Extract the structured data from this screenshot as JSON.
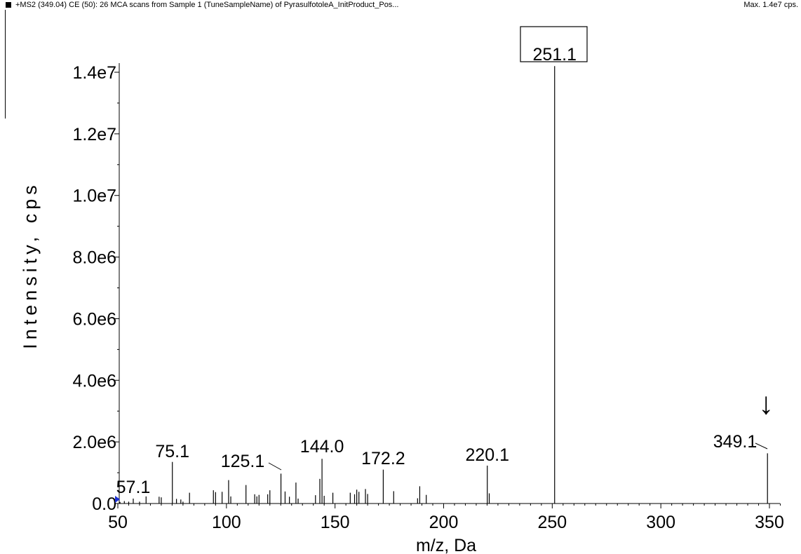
{
  "header": {
    "title": "+MS2 (349.04) CE (50): 26 MCA scans from Sample 1 (TuneSampleName) of PyrasulfotoleA_InitProduct_Pos...",
    "max": "Max. 1.4e7 cps."
  },
  "chart_data": {
    "type": "bar",
    "title": "",
    "xlabel": "m/z, Da",
    "ylabel": "Intensity, cps",
    "xlim": [
      50,
      355
    ],
    "ylim": [
      0,
      14300000.0
    ],
    "x_ticks": [
      50,
      100,
      150,
      200,
      250,
      300,
      350
    ],
    "x_tick_labels": [
      "50",
      "100",
      "150",
      "200",
      "250",
      "300",
      "350"
    ],
    "y_ticks": [
      0,
      2000000,
      4000000,
      6000000,
      8000000,
      10000000,
      12000000,
      14000000
    ],
    "y_tick_labels": [
      "0.0",
      "2.0e6",
      "4.0e6",
      "6.0e6",
      "8.0e6",
      "1.0e7",
      "1.2e7",
      "1.4e7"
    ],
    "grid": false,
    "legend": "none",
    "peaks": [
      {
        "x": 51,
        "y": 50000
      },
      {
        "x": 53,
        "y": 80000
      },
      {
        "x": 55,
        "y": 60000
      },
      {
        "x": 57.1,
        "y": 160000
      },
      {
        "x": 60,
        "y": 60000
      },
      {
        "x": 63,
        "y": 230000
      },
      {
        "x": 69,
        "y": 220000
      },
      {
        "x": 70,
        "y": 200000
      },
      {
        "x": 75.1,
        "y": 1350000
      },
      {
        "x": 77,
        "y": 150000
      },
      {
        "x": 79,
        "y": 130000
      },
      {
        "x": 80,
        "y": 60000
      },
      {
        "x": 83,
        "y": 350000
      },
      {
        "x": 94,
        "y": 430000
      },
      {
        "x": 95,
        "y": 370000
      },
      {
        "x": 98,
        "y": 380000
      },
      {
        "x": 101,
        "y": 760000
      },
      {
        "x": 102,
        "y": 230000
      },
      {
        "x": 109,
        "y": 600000
      },
      {
        "x": 113,
        "y": 300000
      },
      {
        "x": 114,
        "y": 230000
      },
      {
        "x": 115,
        "y": 280000
      },
      {
        "x": 119,
        "y": 300000
      },
      {
        "x": 120,
        "y": 430000
      },
      {
        "x": 125.1,
        "y": 970000
      },
      {
        "x": 127,
        "y": 390000
      },
      {
        "x": 129,
        "y": 220000
      },
      {
        "x": 132,
        "y": 680000
      },
      {
        "x": 133,
        "y": 160000
      },
      {
        "x": 141,
        "y": 270000
      },
      {
        "x": 143,
        "y": 800000
      },
      {
        "x": 144,
        "y": 1450000
      },
      {
        "x": 145,
        "y": 250000
      },
      {
        "x": 149,
        "y": 350000
      },
      {
        "x": 157,
        "y": 350000
      },
      {
        "x": 159,
        "y": 300000
      },
      {
        "x": 160,
        "y": 450000
      },
      {
        "x": 161,
        "y": 380000
      },
      {
        "x": 164,
        "y": 470000
      },
      {
        "x": 165,
        "y": 310000
      },
      {
        "x": 172.2,
        "y": 1100000
      },
      {
        "x": 177,
        "y": 400000
      },
      {
        "x": 188,
        "y": 170000
      },
      {
        "x": 189,
        "y": 560000
      },
      {
        "x": 192,
        "y": 280000
      },
      {
        "x": 220.1,
        "y": 1230000
      },
      {
        "x": 221,
        "y": 330000
      },
      {
        "x": 251.1,
        "y": 14200000
      },
      {
        "x": 349.1,
        "y": 1630000
      }
    ],
    "annotations": [
      {
        "label": "251.1",
        "x": 251.1,
        "boxed": true
      },
      {
        "label": "220.1",
        "x": 220.1
      },
      {
        "label": "172.2",
        "x": 172.2
      },
      {
        "label": "144.0",
        "x": 144
      },
      {
        "label": "125.1",
        "x": 125.1
      },
      {
        "label": "75.1",
        "x": 75.1
      },
      {
        "label": "57.1",
        "x": 57.1
      },
      {
        "label": "349.1",
        "x": 349.1
      },
      {
        "label": "↓",
        "x": 349.1,
        "kind": "precursor-arrow"
      }
    ]
  }
}
